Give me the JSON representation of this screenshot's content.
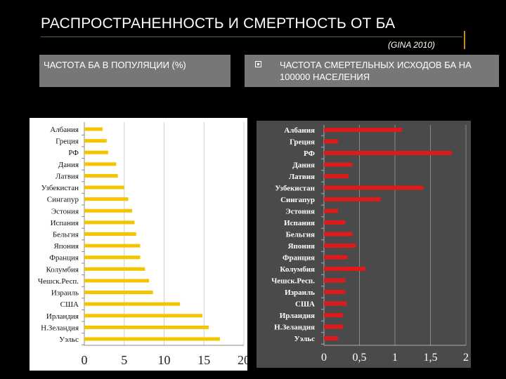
{
  "title": "РАСПРОСТРАНЕННОСТЬ И СМЕРТНОСТЬ ОТ БА",
  "subtitle": "(GINA 2010)",
  "left_caption": "ЧАСТОТА БА В ПОПУЛЯЦИИ (%)",
  "right_caption": "ЧАСТОТА СМЕРТЕЛЬНЫХ ИСХОДОВ БА НА 100000 НАСЕЛЕНИЯ",
  "colors": {
    "background": "#000000",
    "caption_bg": "#777777",
    "left_plot_bg": "#ffffff",
    "right_plot_bg": "#4a4a4a",
    "left_bar": "#f5c400",
    "right_bar": "#e01a1a",
    "accent": "#c08a2e"
  },
  "chart_data": [
    {
      "type": "bar",
      "orientation": "horizontal",
      "title": "ЧАСТОТА БА В ПОПУЛЯЦИИ (%)",
      "categories": [
        "Албания",
        "Греция",
        "РФ",
        "Дания",
        "Латвия",
        "Узбекистан",
        "Сингапур",
        "Эстония",
        "Испания",
        "Бельгия",
        "Япония",
        "Франция",
        "Колумбия",
        "Чешск.Респ.",
        "Израиль",
        "США",
        "Ирландия",
        "Н.Зеландия",
        "Уэльс"
      ],
      "values": [
        2.3,
        2.8,
        3.0,
        4.0,
        4.2,
        5.0,
        5.5,
        6.0,
        6.3,
        6.5,
        7.0,
        7.0,
        7.6,
        8.1,
        8.6,
        12.0,
        14.8,
        15.6,
        17.0
      ],
      "xlim": [
        0,
        20
      ],
      "xticks": [
        "0",
        "5",
        "10",
        "15",
        "20"
      ],
      "xtick_values": [
        0,
        5,
        10,
        15,
        20
      ],
      "grid": true
    },
    {
      "type": "bar",
      "orientation": "horizontal",
      "title": "ЧАСТОТА СМЕРТЕЛЬНЫХ ИСХОДОВ БА НА 100000 НАСЕЛЕНИЯ",
      "categories": [
        "Албания",
        "Греция",
        "РФ",
        "Дания",
        "Латвия",
        "Узбекистан",
        "Сингапур",
        "Эстония",
        "Испания",
        "Бельгия",
        "Япония",
        "Франция",
        "Колумбия",
        "Чешск.Респ.",
        "Израиль",
        "США",
        "Ирландия",
        "Н.Зеландия",
        "Уэльс"
      ],
      "values": [
        1.1,
        0.2,
        1.8,
        0.4,
        0.35,
        1.4,
        0.8,
        0.2,
        0.3,
        0.4,
        0.45,
        0.33,
        0.58,
        0.3,
        0.3,
        0.32,
        0.27,
        0.27,
        0.2
      ],
      "xlim": [
        0,
        2
      ],
      "xticks": [
        "0",
        "0,5",
        "1",
        "1,5",
        "2"
      ],
      "xtick_values": [
        0,
        0.5,
        1,
        1.5,
        2
      ],
      "grid": true
    }
  ]
}
